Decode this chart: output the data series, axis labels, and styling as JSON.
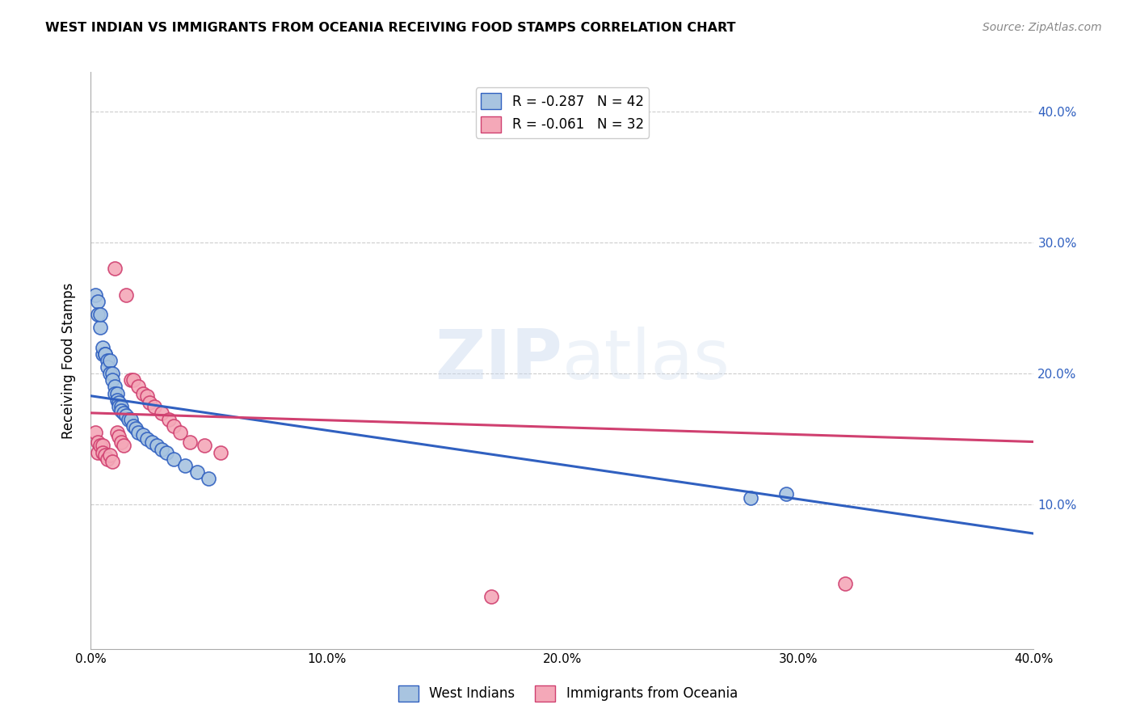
{
  "title": "WEST INDIAN VS IMMIGRANTS FROM OCEANIA RECEIVING FOOD STAMPS CORRELATION CHART",
  "source": "Source: ZipAtlas.com",
  "ylabel": "Receiving Food Stamps",
  "xlim": [
    0.0,
    0.4
  ],
  "ylim": [
    -0.01,
    0.43
  ],
  "ytick_labels": [
    "10.0%",
    "20.0%",
    "30.0%",
    "40.0%"
  ],
  "ytick_values": [
    0.1,
    0.2,
    0.3,
    0.4
  ],
  "xtick_labels": [
    "0.0%",
    "10.0%",
    "20.0%",
    "30.0%",
    "40.0%"
  ],
  "xtick_values": [
    0.0,
    0.1,
    0.2,
    0.3,
    0.4
  ],
  "legend_line1": "R = -0.287   N = 42",
  "legend_line2": "R = -0.061   N = 32",
  "blue_color": "#a8c4e0",
  "pink_color": "#f4a8b8",
  "blue_line_color": "#3060c0",
  "pink_line_color": "#d04070",
  "watermark_zip": "ZIP",
  "watermark_atlas": "atlas",
  "west_indians_x": [
    0.002,
    0.003,
    0.003,
    0.004,
    0.004,
    0.005,
    0.005,
    0.006,
    0.006,
    0.007,
    0.007,
    0.008,
    0.008,
    0.009,
    0.009,
    0.01,
    0.01,
    0.011,
    0.011,
    0.012,
    0.012,
    0.013,
    0.013,
    0.014,
    0.015,
    0.016,
    0.017,
    0.018,
    0.019,
    0.02,
    0.022,
    0.024,
    0.026,
    0.028,
    0.03,
    0.032,
    0.035,
    0.04,
    0.045,
    0.05,
    0.28,
    0.295
  ],
  "west_indians_y": [
    0.26,
    0.255,
    0.245,
    0.235,
    0.245,
    0.215,
    0.22,
    0.215,
    0.215,
    0.21,
    0.205,
    0.21,
    0.2,
    0.2,
    0.195,
    0.19,
    0.185,
    0.185,
    0.18,
    0.178,
    0.175,
    0.175,
    0.172,
    0.17,
    0.168,
    0.165,
    0.165,
    0.16,
    0.158,
    0.155,
    0.153,
    0.15,
    0.148,
    0.145,
    0.142,
    0.14,
    0.135,
    0.13,
    0.125,
    0.12,
    0.105,
    0.108
  ],
  "oceania_x": [
    0.002,
    0.003,
    0.003,
    0.004,
    0.005,
    0.005,
    0.006,
    0.007,
    0.008,
    0.009,
    0.01,
    0.011,
    0.012,
    0.013,
    0.014,
    0.015,
    0.017,
    0.018,
    0.02,
    0.022,
    0.024,
    0.025,
    0.027,
    0.03,
    0.033,
    0.035,
    0.038,
    0.042,
    0.048,
    0.055,
    0.17,
    0.32
  ],
  "oceania_y": [
    0.155,
    0.148,
    0.14,
    0.145,
    0.145,
    0.14,
    0.138,
    0.135,
    0.138,
    0.133,
    0.28,
    0.155,
    0.152,
    0.148,
    0.145,
    0.26,
    0.195,
    0.195,
    0.19,
    0.185,
    0.183,
    0.178,
    0.175,
    0.17,
    0.165,
    0.16,
    0.155,
    0.148,
    0.145,
    0.14,
    0.03,
    0.04
  ],
  "blue_line_x": [
    0.0,
    0.4
  ],
  "blue_line_y": [
    0.183,
    0.078
  ],
  "pink_line_x": [
    0.0,
    0.4
  ],
  "pink_line_y": [
    0.17,
    0.148
  ]
}
